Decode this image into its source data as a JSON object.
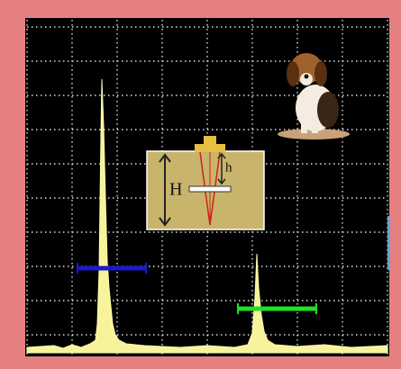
{
  "inset": {
    "depth_label": "H",
    "flaw_depth_label": "h"
  }
}
